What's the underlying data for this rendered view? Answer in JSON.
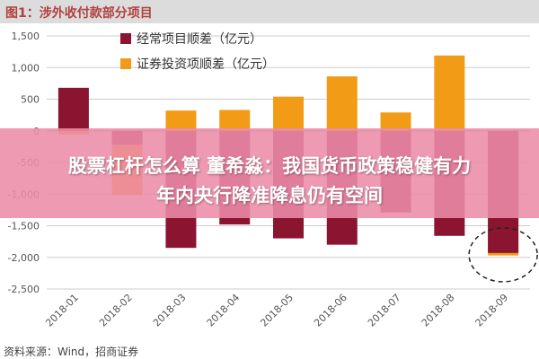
{
  "header": {
    "title": "图1：涉外收付款部分项目"
  },
  "overlay": {
    "line1": "股票杠杆怎么算 董希淼：我国货币政策稳健有力",
    "line2": "年内央行降准降息仍有空间"
  },
  "source": "资料来源：Wind，招商证券",
  "colors": {
    "series1": "#8b1430",
    "series2": "#f29b16",
    "axis": "#cccccc",
    "tick": "#555555"
  },
  "chart_data": {
    "type": "bar",
    "categories": [
      "2018-01",
      "2018-02",
      "2018-03",
      "2018-04",
      "2018-05",
      "2018-06",
      "2018-07",
      "2018-08",
      "2018-09"
    ],
    "series": [
      {
        "name": "经常项目顺差（亿元）",
        "values": [
          680,
          -220,
          -1850,
          -1480,
          -1700,
          -1800,
          -1290,
          -1660,
          -1930
        ]
      },
      {
        "name": "证券投资项顺差（亿元）",
        "values": [
          -60,
          -1020,
          320,
          330,
          540,
          860,
          290,
          1190,
          -1970
        ]
      }
    ],
    "ylim": [
      -2500,
      1500
    ],
    "yticks": [
      "1,500",
      "1,000",
      "500",
      "0",
      "-500",
      "-1,000",
      "-1,500",
      "-2,000",
      "-2,500"
    ],
    "ytick_values": [
      1500,
      1000,
      500,
      0,
      -500,
      -1000,
      -1500,
      -2000,
      -2500
    ],
    "legend_position": "top-center",
    "annotation": "dashed circle around 2018-09"
  }
}
